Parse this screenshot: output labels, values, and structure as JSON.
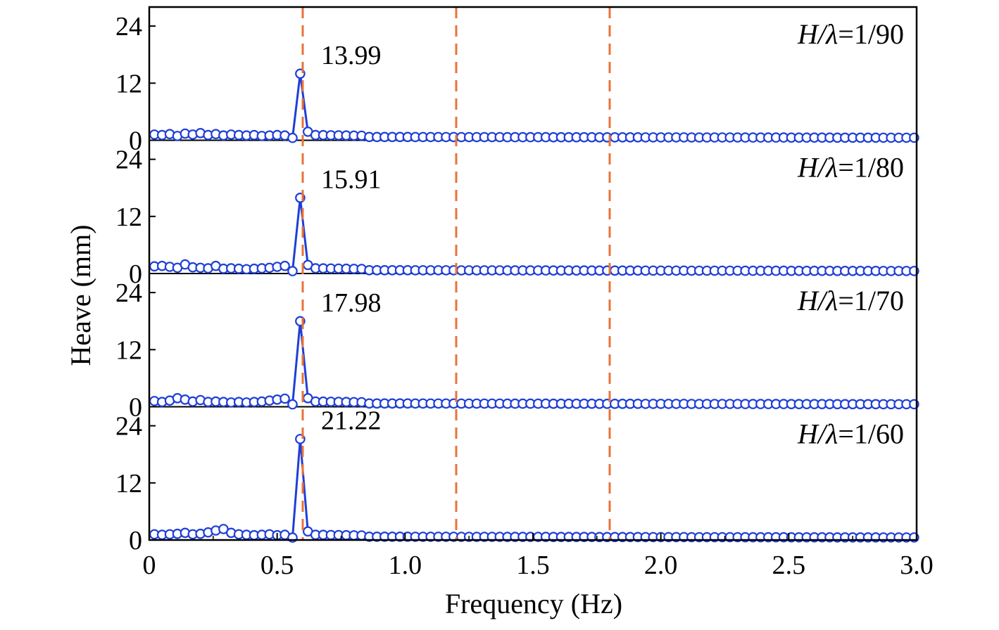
{
  "chart_data": {
    "type": "line",
    "xlabel": "Frequency (Hz)",
    "ylabel": "Heave (mm)",
    "xlim": [
      0,
      3.0
    ],
    "x_ticks": [
      "0",
      "0.5",
      "1.0",
      "1.5",
      "2.0",
      "2.5",
      "3.0"
    ],
    "ylim": [
      0,
      28
    ],
    "y_ticks": [
      "0",
      "12",
      "24"
    ],
    "reference_lines_x": [
      0.6,
      1.2,
      1.8
    ],
    "colors": {
      "series": "#1f3fd6",
      "reference": "#e8733a",
      "axis": "#000000"
    },
    "grid": false,
    "panels": [
      {
        "case_prefix": "H/",
        "case_symbol": "λ",
        "case_value": "=1/90",
        "peak_label": "13.99",
        "peak": {
          "x": 0.6,
          "y": 13.99
        },
        "background": [
          1.2,
          1.1,
          1.3,
          0.9,
          1.4,
          1.2,
          1.5,
          1.1,
          1.3,
          1.0,
          1.2,
          1.1,
          1.0,
          1.1,
          0.9,
          1.0,
          1.1,
          1.0,
          0.9,
          1.5,
          1.2,
          1.6,
          1.8,
          1.5,
          1.1
        ]
      },
      {
        "case_prefix": "H/",
        "case_symbol": "λ",
        "case_value": "=1/80",
        "peak_label": "15.91",
        "peak": {
          "x": 0.6,
          "y": 15.91
        },
        "background": [
          1.5,
          1.6,
          1.4,
          1.2,
          1.9,
          1.3,
          1.2,
          1.1,
          1.6,
          1.0,
          1.1,
          1.0,
          0.9,
          1.0,
          1.1,
          1.2,
          1.4,
          1.6,
          2.0,
          2.6,
          1.7,
          1.2,
          2.0,
          1.6,
          1.3
        ]
      },
      {
        "case_prefix": "H/",
        "case_symbol": "λ",
        "case_value": "=1/70",
        "peak_label": "17.98",
        "peak": {
          "x": 0.6,
          "y": 17.98
        },
        "background": [
          1.2,
          1.0,
          1.3,
          1.8,
          1.5,
          1.1,
          1.4,
          1.0,
          1.1,
          1.0,
          0.9,
          1.0,
          0.9,
          1.0,
          1.1,
          1.3,
          1.5,
          1.7,
          2.1,
          1.2,
          1.9,
          1.5,
          1.3,
          1.1,
          1.0
        ]
      },
      {
        "case_prefix": "H/",
        "case_symbol": "λ",
        "case_value": "=1/60",
        "peak_label": "21.22",
        "peak": {
          "x": 0.6,
          "y": 21.22
        },
        "background": [
          1.2,
          1.1,
          1.2,
          1.3,
          1.5,
          1.2,
          1.3,
          1.6,
          2.0,
          2.3,
          1.5,
          1.2,
          1.1,
          1.0,
          1.1,
          1.2,
          1.0,
          1.1,
          1.3,
          2.8,
          1.4,
          2.3,
          1.6,
          1.3,
          1.2
        ]
      }
    ]
  }
}
